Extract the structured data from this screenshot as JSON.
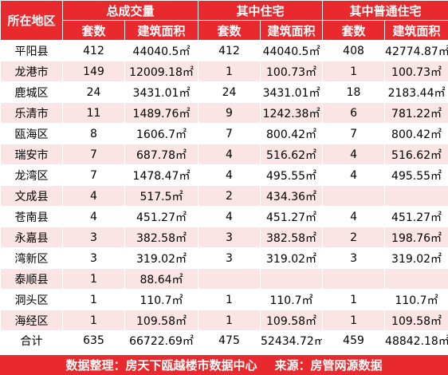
{
  "header": {
    "region": "所在地区",
    "groups": [
      "总成交量",
      "其中住宅",
      "其中普通住宅"
    ],
    "sub": [
      "套数",
      "建筑面积",
      "套数",
      "建筑面积",
      "套数",
      "建筑面积"
    ]
  },
  "rows": [
    {
      "region": "平阳县",
      "c1": "412",
      "a1": "44040.5㎡",
      "c2": "412",
      "a2": "44040.5㎡",
      "c3": "408",
      "a3": "42774.87㎡"
    },
    {
      "region": "龙港市",
      "c1": "149",
      "a1": "12009.18㎡",
      "c2": "1",
      "a2": "100.73㎡",
      "c3": "1",
      "a3": "100.73㎡"
    },
    {
      "region": "鹿城区",
      "c1": "24",
      "a1": "3431.01㎡",
      "c2": "24",
      "a2": "3431.01㎡",
      "c3": "18",
      "a3": "2183.44㎡"
    },
    {
      "region": "乐清市",
      "c1": "11",
      "a1": "1489.76㎡",
      "c2": "9",
      "a2": "1242.38㎡",
      "c3": "6",
      "a3": "781.22㎡"
    },
    {
      "region": "瓯海区",
      "c1": "8",
      "a1": "1606.7㎡",
      "c2": "7",
      "a2": "800.42㎡",
      "c3": "7",
      "a3": "800.42㎡"
    },
    {
      "region": "瑞安市",
      "c1": "7",
      "a1": "687.78㎡",
      "c2": "4",
      "a2": "516.62㎡",
      "c3": "4",
      "a3": "516.62㎡"
    },
    {
      "region": "龙湾区",
      "c1": "7",
      "a1": "1478.47㎡",
      "c2": "4",
      "a2": "495.55㎡",
      "c3": "4",
      "a3": "495.55㎡"
    },
    {
      "region": "文成县",
      "c1": "4",
      "a1": "517.5㎡",
      "c2": "2",
      "a2": "434.36㎡",
      "c3": "",
      "a3": ""
    },
    {
      "region": "苍南县",
      "c1": "4",
      "a1": "451.27㎡",
      "c2": "4",
      "a2": "451.27㎡",
      "c3": "4",
      "a3": "451.27㎡"
    },
    {
      "region": "永嘉县",
      "c1": "3",
      "a1": "382.58㎡",
      "c2": "3",
      "a2": "382.58㎡",
      "c3": "2",
      "a3": "198.76㎡"
    },
    {
      "region": "湾新区",
      "c1": "3",
      "a1": "319.02㎡",
      "c2": "3",
      "a2": "319.02㎡",
      "c3": "3",
      "a3": "319.02㎡"
    },
    {
      "region": "泰顺县",
      "c1": "1",
      "a1": "88.64㎡",
      "c2": "",
      "a2": "",
      "c3": "",
      "a3": ""
    },
    {
      "region": "洞头区",
      "c1": "1",
      "a1": "110.7㎡",
      "c2": "1",
      "a2": "110.7㎡",
      "c3": "1",
      "a3": "110.7㎡"
    },
    {
      "region": "海经区",
      "c1": "1",
      "a1": "109.58㎡",
      "c2": "1",
      "a2": "109.58㎡",
      "c3": "1",
      "a3": "109.58㎡"
    }
  ],
  "total": {
    "region": "合计",
    "c1": "635",
    "a1": "66722.69㎡",
    "c2": "475",
    "a2": "52434.72㎡",
    "c3": "459",
    "a3": "48842.18㎡"
  },
  "footer": {
    "compiler": "数据整理：房天下瓯越楼市数据中心",
    "source": "来源：房管网源数据"
  },
  "colors": {
    "header_bg": "#e8292d",
    "stripe": "#fbe4e4"
  }
}
